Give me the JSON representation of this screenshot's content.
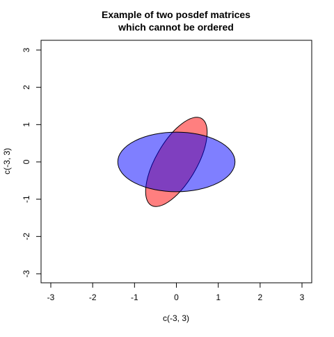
{
  "chart_data": {
    "type": "scatter",
    "title_lines": [
      "Example of two posdef matrices",
      "which cannot be ordered"
    ],
    "xlabel": "c(-3, 3)",
    "ylabel": "c(-3, 3)",
    "xlim": [
      -3,
      3
    ],
    "ylim": [
      -3,
      3
    ],
    "xticks": [
      -3,
      -2,
      -1,
      0,
      1,
      2,
      3
    ],
    "yticks": [
      -3,
      -2,
      -1,
      0,
      1,
      2,
      3
    ],
    "grid": false,
    "legend": "none",
    "ellipses": [
      {
        "center": [
          0,
          0
        ],
        "semi_axes": [
          1.2,
          0.55
        ],
        "rotation_deg": -60,
        "fill": "#ff0000",
        "fill_opacity": 0.5,
        "stroke": "#000000"
      },
      {
        "center": [
          0,
          0
        ],
        "semi_axes": [
          1.4,
          0.8
        ],
        "rotation_deg": 0,
        "fill": "#0000ff",
        "fill_opacity": 0.5,
        "stroke": "#000000"
      }
    ]
  }
}
